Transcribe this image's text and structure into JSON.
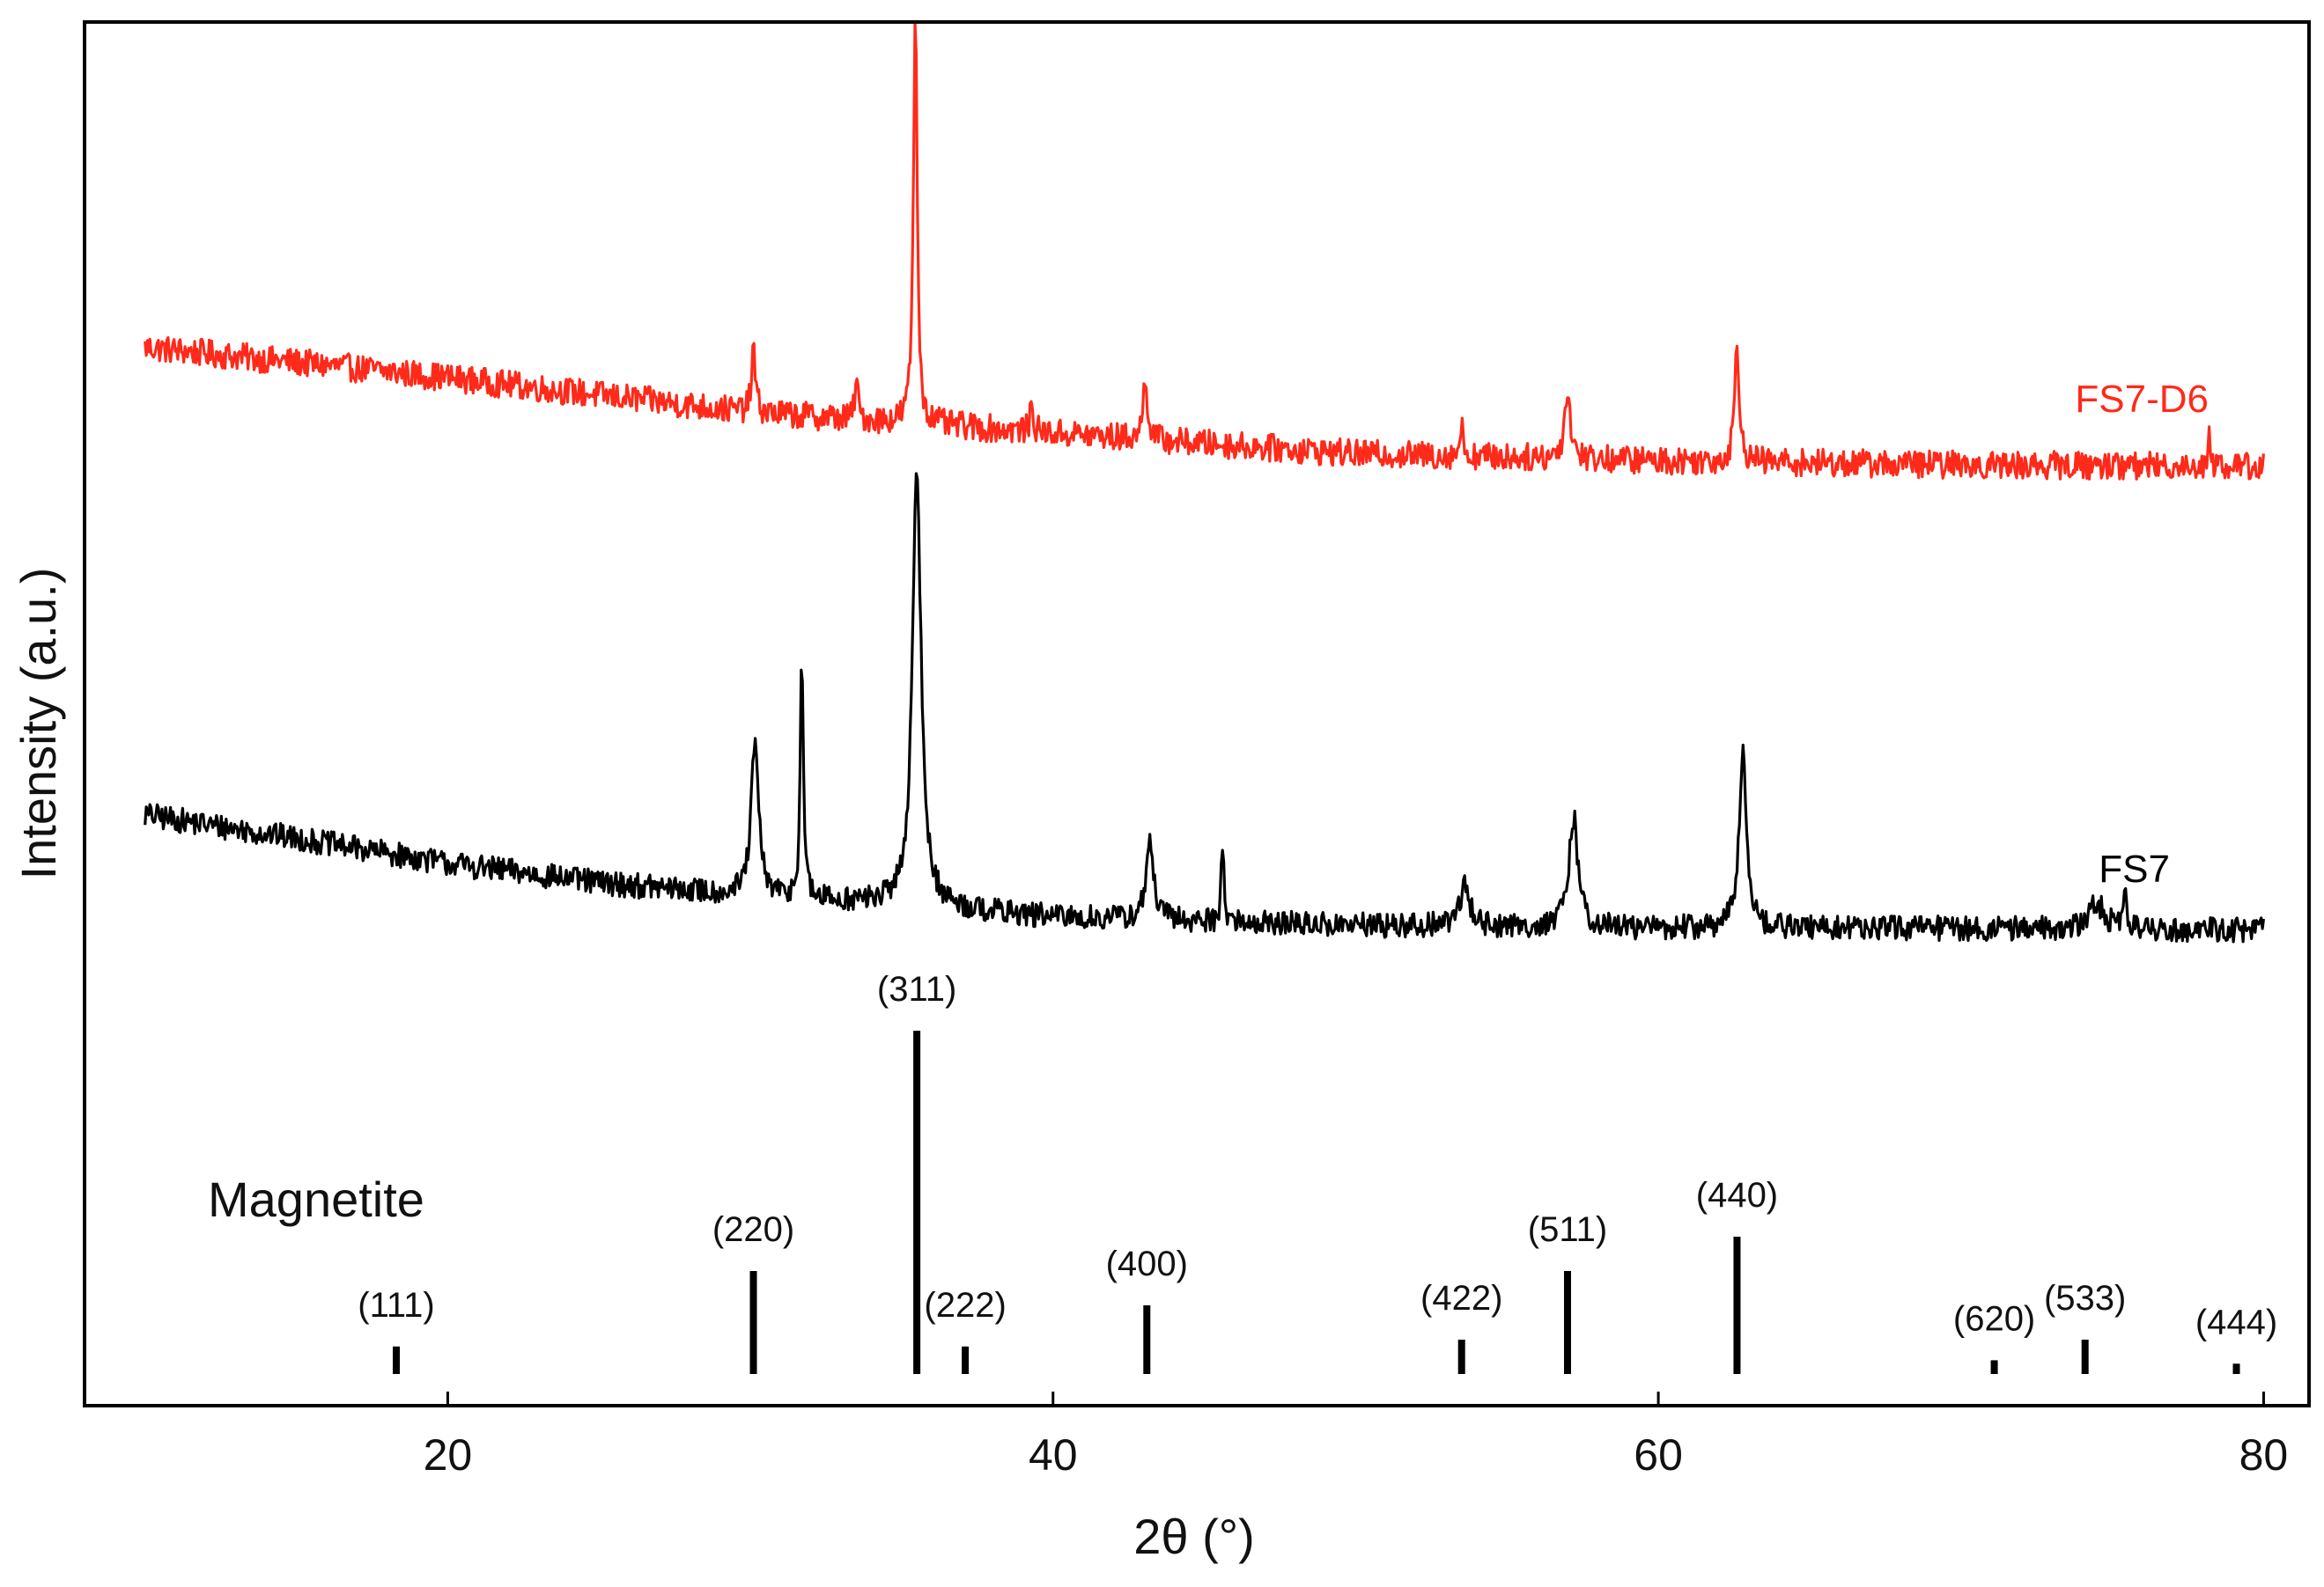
{
  "chart_data": {
    "type": "line",
    "title": "",
    "xlabel": "2θ (°)",
    "ylabel": "Intensity (a.u.)",
    "xlim": [
      8,
      81.5
    ],
    "x_ticks": [
      20,
      40,
      60,
      80
    ],
    "y_ticks": [],
    "grid": false,
    "legend": "none",
    "x_range": [
      10,
      80
    ],
    "series": [
      {
        "name": "FS7-D6",
        "color": "#ff2a1a",
        "baseline_trend": [
          [
            10,
            0.765
          ],
          [
            20,
            0.743
          ],
          [
            30,
            0.718
          ],
          [
            40,
            0.703
          ],
          [
            50,
            0.688
          ],
          [
            60,
            0.683
          ],
          [
            70,
            0.68
          ],
          [
            80,
            0.679
          ]
        ],
        "peaks": [
          {
            "x": 30.1,
            "height": 0.046,
            "width": 0.15
          },
          {
            "x": 33.5,
            "height": 0.03,
            "width": 0.12
          },
          {
            "x": 35.45,
            "height": 0.3,
            "width": 0.15
          },
          {
            "x": 39.3,
            "height": 0.02,
            "width": 0.12
          },
          {
            "x": 43.05,
            "height": 0.048,
            "width": 0.16
          },
          {
            "x": 53.5,
            "height": 0.02,
            "width": 0.15
          },
          {
            "x": 57.0,
            "height": 0.047,
            "width": 0.25
          },
          {
            "x": 62.6,
            "height": 0.088,
            "width": 0.18
          },
          {
            "x": 78.2,
            "height": 0.02,
            "width": 0.1
          }
        ],
        "noise_amplitude": 0.01
      },
      {
        "name": "FS7",
        "color": "#000000",
        "baseline_trend": [
          [
            10,
            0.427
          ],
          [
            15,
            0.41
          ],
          [
            20,
            0.392
          ],
          [
            25,
            0.378
          ],
          [
            30,
            0.368
          ],
          [
            35,
            0.362
          ],
          [
            40,
            0.353
          ],
          [
            50,
            0.347
          ],
          [
            60,
            0.345
          ],
          [
            70,
            0.345
          ],
          [
            80,
            0.344
          ]
        ],
        "peaks": [
          {
            "x": 30.15,
            "height": 0.11,
            "width": 0.3
          },
          {
            "x": 31.7,
            "height": 0.18,
            "width": 0.12
          },
          {
            "x": 35.5,
            "height": 0.31,
            "width": 0.35
          },
          {
            "x": 43.2,
            "height": 0.055,
            "width": 0.3
          },
          {
            "x": 45.6,
            "height": 0.06,
            "width": 0.1
          },
          {
            "x": 53.6,
            "height": 0.03,
            "width": 0.4
          },
          {
            "x": 57.2,
            "height": 0.08,
            "width": 0.35
          },
          {
            "x": 62.8,
            "height": 0.125,
            "width": 0.3
          },
          {
            "x": 74.5,
            "height": 0.018,
            "width": 0.6
          },
          {
            "x": 75.4,
            "height": 0.025,
            "width": 0.15
          }
        ],
        "noise_amplitude": 0.009
      }
    ],
    "reference_phase": {
      "name": "Magnetite",
      "peaks": [
        {
          "hkl": "(111)",
          "x": 18.3,
          "relative_intensity": 8
        },
        {
          "hkl": "(220)",
          "x": 30.1,
          "relative_intensity": 30
        },
        {
          "hkl": "(311)",
          "x": 35.5,
          "relative_intensity": 100
        },
        {
          "hkl": "(222)",
          "x": 37.1,
          "relative_intensity": 8
        },
        {
          "hkl": "(400)",
          "x": 43.1,
          "relative_intensity": 20
        },
        {
          "hkl": "(422)",
          "x": 53.5,
          "relative_intensity": 10
        },
        {
          "hkl": "(511)",
          "x": 57.0,
          "relative_intensity": 30
        },
        {
          "hkl": "(440)",
          "x": 62.6,
          "relative_intensity": 40
        },
        {
          "hkl": "(620)",
          "x": 71.1,
          "relative_intensity": 4
        },
        {
          "hkl": "(533)",
          "x": 74.1,
          "relative_intensity": 10
        },
        {
          "hkl": "(444)",
          "x": 79.1,
          "relative_intensity": 3
        }
      ]
    }
  }
}
